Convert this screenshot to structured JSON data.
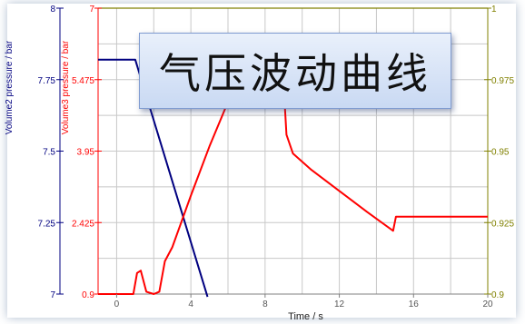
{
  "title": "气压波动曲线",
  "colors": {
    "volume2": "#000080",
    "volume3": "#ff0000",
    "right_axis": "#808000",
    "grid": "#c8c8c8"
  },
  "chart_data": {
    "type": "line",
    "title": "",
    "x": {
      "label": "Time / s",
      "range": [
        -1,
        20
      ],
      "ticks": [
        "0",
        "4",
        "8",
        "12",
        "16",
        "20"
      ]
    },
    "axes": {
      "left_outer": {
        "label": "Volume2 pressure / bar",
        "range": [
          7,
          8
        ],
        "ticks": [
          "7",
          "7.25",
          "7.5",
          "7.75",
          "8"
        ]
      },
      "left_inner": {
        "label": "Volume3 pressure / bar",
        "range": [
          0.9,
          7
        ],
        "ticks": [
          "0.9",
          "2.425",
          "3.95",
          "5.475",
          "7"
        ]
      },
      "right": {
        "label": "",
        "range": [
          0.9,
          1
        ],
        "ticks": [
          "0.9",
          "0.925",
          "0.95",
          "0.975",
          "1"
        ]
      }
    },
    "grid": true,
    "series": [
      {
        "name": "Volume2 pressure",
        "axis": "left_outer",
        "points": [
          [
            -1,
            7.82
          ],
          [
            1.0,
            7.82
          ],
          [
            4.9,
            6.99
          ]
        ]
      },
      {
        "name": "Volume3 pressure",
        "axis": "left_inner",
        "points": [
          [
            -1,
            0.9
          ],
          [
            0.9,
            0.9
          ],
          [
            1.1,
            1.35
          ],
          [
            1.3,
            1.4
          ],
          [
            1.6,
            0.95
          ],
          [
            2.0,
            0.9
          ],
          [
            2.3,
            0.95
          ],
          [
            2.6,
            1.6
          ],
          [
            3.0,
            1.9
          ],
          [
            4.0,
            3.0
          ],
          [
            5.0,
            4.05
          ],
          [
            6.0,
            5.0
          ],
          [
            6.6,
            5.5
          ],
          [
            6.9,
            5.75
          ],
          [
            7.05,
            5.8
          ],
          [
            7.1,
            5.5
          ],
          [
            7.3,
            5.35
          ],
          [
            9.0,
            5.35
          ],
          [
            9.15,
            4.3
          ],
          [
            9.5,
            3.9
          ],
          [
            10.5,
            3.55
          ],
          [
            12.0,
            3.1
          ],
          [
            13.5,
            2.65
          ],
          [
            14.9,
            2.25
          ],
          [
            15.05,
            2.55
          ],
          [
            20,
            2.55
          ]
        ]
      }
    ]
  }
}
